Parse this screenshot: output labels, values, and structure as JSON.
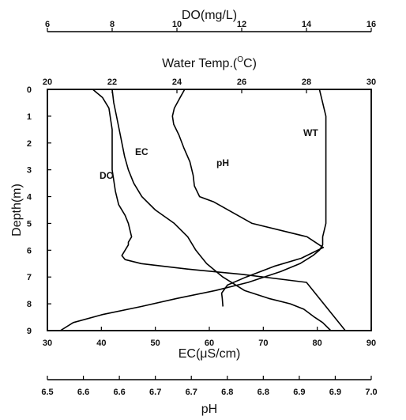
{
  "chart_data": {
    "type": "line",
    "plot_frame": "all four sides",
    "grid": false,
    "legend": "none (series labelled directly on curves)",
    "y_axis": {
      "label": "Depth(m)",
      "range": [
        0,
        9
      ],
      "inverted": true,
      "ticks": [
        "0",
        "1",
        "2",
        "3",
        "4",
        "5",
        "6",
        "7",
        "8",
        "9"
      ]
    },
    "x_axes": [
      {
        "id": "do",
        "position": "top (outer)",
        "label": "DO(mg/L)",
        "range": [
          6,
          16
        ],
        "ticks": [
          "6",
          "8",
          "10",
          "12",
          "14",
          "16"
        ]
      },
      {
        "id": "wt",
        "position": "top (inner)",
        "label_main": "Water Temp.(",
        "label_sup": "O",
        "label_end": "C)",
        "range": [
          20,
          30
        ],
        "ticks": [
          "20",
          "22",
          "24",
          "26",
          "28",
          "30"
        ]
      },
      {
        "id": "ec",
        "position": "bottom (inner)",
        "label": "EC(μS/cm)",
        "range": [
          30,
          90
        ],
        "ticks": [
          "30",
          "40",
          "50",
          "60",
          "70",
          "80",
          "90"
        ]
      },
      {
        "id": "ph",
        "position": "bottom (outer)",
        "label": "pH",
        "range": [
          6.5,
          7.0
        ],
        "ticks": [
          "6.5",
          "6.6",
          "6.6",
          "6.7",
          "6.7",
          "6.8",
          "6.8",
          "6.9",
          "6.9",
          "7.0"
        ]
      }
    ],
    "series": [
      {
        "name": "WT",
        "axis": "wt",
        "color": "#000000",
        "x": [
          28.4,
          28.5,
          28.6,
          28.6,
          28.6,
          28.6,
          28.6,
          28.6,
          28.5,
          28.5,
          28.4,
          28.2,
          27.8,
          27.2,
          26.2,
          25.2,
          24.0,
          22.9,
          21.7,
          20.8,
          20.4
        ],
        "y": [
          0,
          0.5,
          1,
          2,
          3,
          4,
          4.5,
          5,
          5.5,
          5.8,
          6.0,
          6.2,
          6.5,
          6.8,
          7.2,
          7.5,
          7.8,
          8.1,
          8.4,
          8.7,
          9
        ]
      },
      {
        "name": "DO",
        "axis": "do",
        "color": "#000000",
        "x": [
          7.4,
          7.7,
          7.9,
          8.0,
          8.0,
          8.0,
          8.1,
          8.2,
          8.4,
          8.5,
          8.6,
          8.5,
          8.5,
          8.4,
          8.3,
          8.4,
          8.9,
          10.3,
          12.0,
          14.0,
          15.2
        ],
        "y": [
          0,
          0.3,
          0.7,
          1.5,
          2.2,
          3.0,
          3.8,
          4.3,
          4.7,
          5.0,
          5.5,
          5.7,
          5.8,
          6.0,
          6.2,
          6.35,
          6.5,
          6.7,
          6.9,
          7.2,
          9
        ]
      },
      {
        "name": "EC",
        "axis": "ec",
        "color": "#000000",
        "x": [
          42.0,
          42.3,
          42.8,
          43.5,
          44.3,
          45.0,
          46.0,
          47.5,
          50.0,
          53.5,
          56.0,
          57.5,
          59.5,
          62.5,
          66.5,
          71.0,
          75.0,
          77.5,
          79.5,
          81.0,
          82.5
        ],
        "y": [
          0,
          0.5,
          1.0,
          1.7,
          2.5,
          3.0,
          3.5,
          4.0,
          4.5,
          5.0,
          5.5,
          6.0,
          6.5,
          7.0,
          7.5,
          7.8,
          8.0,
          8.2,
          8.5,
          8.7,
          9
        ]
      },
      {
        "name": "pH",
        "axis": "ph",
        "color": "#000000",
        "x": [
          6.712,
          6.705,
          6.696,
          6.693,
          6.695,
          6.703,
          6.711,
          6.72,
          6.725,
          6.727,
          6.735,
          6.757,
          6.816,
          6.901,
          6.926,
          6.892,
          6.85,
          6.807,
          6.778,
          6.769,
          6.77,
          6.771
        ],
        "y": [
          0,
          0.3,
          0.7,
          1.0,
          1.3,
          1.7,
          2.2,
          2.7,
          3.2,
          3.6,
          4.0,
          4.2,
          5.0,
          5.5,
          5.9,
          6.3,
          6.6,
          7.0,
          7.3,
          7.6,
          7.8,
          8.1
        ]
      }
    ],
    "annotations": [
      "WT",
      "DO",
      "EC",
      "pH"
    ]
  }
}
